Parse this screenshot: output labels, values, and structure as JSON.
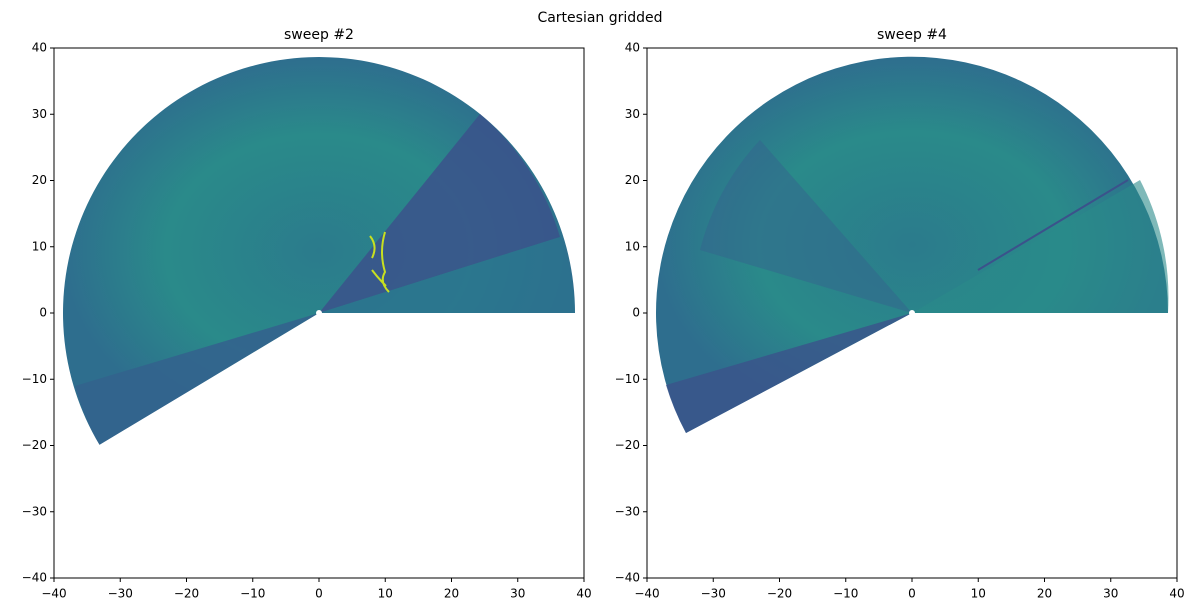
{
  "title": "Cartesian gridded",
  "chart_data": [
    {
      "type": "image",
      "title": "sweep #2",
      "xlim": [
        -40,
        40
      ],
      "ylim": [
        -40,
        40
      ],
      "xticks": [
        {
          "value": -40,
          "label": "−40"
        },
        {
          "value": -30,
          "label": "−30"
        },
        {
          "value": -20,
          "label": "−20"
        },
        {
          "value": -10,
          "label": "−10"
        },
        0,
        10,
        20,
        30,
        40
      ],
      "yticks": [
        {
          "value": -40,
          "label": "−40"
        },
        {
          "value": -30,
          "label": "−30"
        },
        {
          "value": -20,
          "label": "−20"
        },
        {
          "value": -10,
          "label": "−10"
        },
        0,
        10,
        20,
        30,
        40
      ]
    },
    {
      "type": "image",
      "title": "sweep #4",
      "xlim": [
        -40,
        40
      ],
      "ylim": [
        -40,
        40
      ],
      "xticks": [
        {
          "value": -40,
          "label": "−40"
        },
        {
          "value": -30,
          "label": "−30"
        },
        {
          "value": -20,
          "label": "−20"
        },
        {
          "value": -10,
          "label": "−10"
        },
        0,
        10,
        20,
        30,
        40
      ],
      "yticks": [
        {
          "value": -40,
          "label": "−40"
        },
        {
          "value": -30,
          "label": "−30"
        },
        {
          "value": -20,
          "label": "−20"
        },
        {
          "value": -10,
          "label": "−10"
        },
        0,
        10,
        20,
        30,
        40
      ]
    }
  ]
}
